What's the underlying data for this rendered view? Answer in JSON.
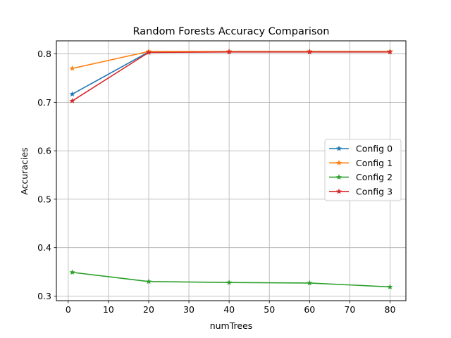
{
  "chart_data": {
    "type": "line",
    "title": "Random Forests Accuracy Comparison",
    "xlabel": "numTrees",
    "ylabel": "Accuracies",
    "x": [
      1,
      20,
      40,
      60,
      80
    ],
    "xlim": [
      -2.95,
      83.95
    ],
    "ylim": [
      0.2905,
      0.827
    ],
    "xticks": [
      0,
      10,
      20,
      30,
      40,
      50,
      60,
      70,
      80
    ],
    "yticks": [
      0.3,
      0.4,
      0.5,
      0.6,
      0.7,
      0.8
    ],
    "ytick_labels": [
      "0.3",
      "0.4",
      "0.5",
      "0.6",
      "0.7",
      "0.8"
    ],
    "grid": true,
    "legend": "center-right",
    "marker": "star",
    "series": [
      {
        "name": "Config 0",
        "color": "#1f77b4",
        "values": [
          0.717,
          0.804,
          0.805,
          0.805,
          0.805
        ]
      },
      {
        "name": "Config 1",
        "color": "#ff7f0e",
        "values": [
          0.77,
          0.805,
          0.805,
          0.805,
          0.805
        ]
      },
      {
        "name": "Config 2",
        "color": "#2ca02c",
        "values": [
          0.349,
          0.33,
          0.328,
          0.327,
          0.319
        ]
      },
      {
        "name": "Config 3",
        "color": "#d62728",
        "values": [
          0.703,
          0.803,
          0.804,
          0.804,
          0.804
        ]
      }
    ]
  }
}
